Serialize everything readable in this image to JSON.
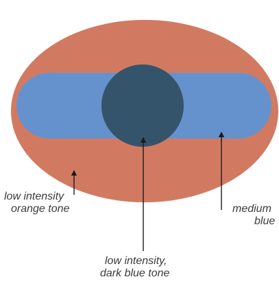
{
  "colors": {
    "outer_ellipse": "#d27a61",
    "band": "#6592cd",
    "core_circle": "#34546c",
    "arrow": "#1a1a1a",
    "label_text": "#3b3b3b",
    "background": "#ffffff"
  },
  "labels": {
    "outer": {
      "line1": "low intensity",
      "line2": "orange tone"
    },
    "core": {
      "line1": "low intensity,",
      "line2": "dark blue tone"
    },
    "band": {
      "line1": "medium",
      "line2": "blue"
    }
  }
}
